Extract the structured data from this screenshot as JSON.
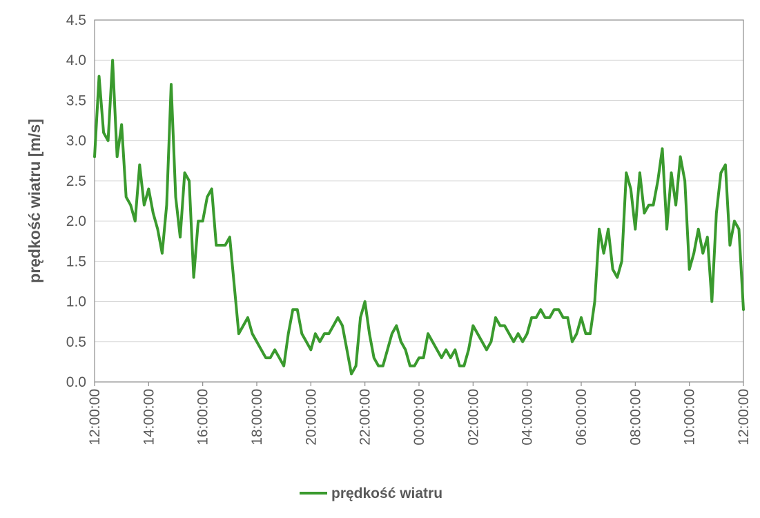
{
  "chart_data": {
    "type": "line",
    "ylabel": "prędkość wiatru [m/s]",
    "xlabel": "",
    "title": "",
    "ylim": [
      0,
      4.5
    ],
    "yticks": [
      "0.0",
      "0.5",
      "1.0",
      "1.5",
      "2.0",
      "2.5",
      "3.0",
      "3.5",
      "4.0",
      "4.5"
    ],
    "xlim_hours": [
      0,
      24
    ],
    "xticks": [
      "12:00:00",
      "14:00:00",
      "16:00:00",
      "18:00:00",
      "20:00:00",
      "22:00:00",
      "00:00:00",
      "02:00:00",
      "04:00:00",
      "06:00:00",
      "08:00:00",
      "10:00:00",
      "12:00:00"
    ],
    "grid": "horizontal",
    "legend": "bottom",
    "series": [
      {
        "name": "prędkość wiatru",
        "color": "#3a9a2e",
        "values": [
          2.8,
          3.8,
          3.1,
          3.0,
          4.0,
          2.8,
          3.2,
          2.3,
          2.2,
          2.0,
          2.7,
          2.2,
          2.4,
          2.1,
          1.9,
          1.6,
          2.2,
          3.7,
          2.3,
          1.8,
          2.6,
          2.5,
          1.3,
          2.0,
          2.0,
          2.3,
          2.4,
          1.7,
          1.7,
          1.7,
          1.8,
          1.2,
          0.6,
          0.7,
          0.8,
          0.6,
          0.5,
          0.4,
          0.3,
          0.3,
          0.4,
          0.3,
          0.2,
          0.6,
          0.9,
          0.9,
          0.6,
          0.5,
          0.4,
          0.6,
          0.5,
          0.6,
          0.6,
          0.7,
          0.8,
          0.7,
          0.4,
          0.1,
          0.2,
          0.8,
          1.0,
          0.6,
          0.3,
          0.2,
          0.2,
          0.4,
          0.6,
          0.7,
          0.5,
          0.4,
          0.2,
          0.2,
          0.3,
          0.3,
          0.6,
          0.5,
          0.4,
          0.3,
          0.4,
          0.3,
          0.4,
          0.2,
          0.2,
          0.4,
          0.7,
          0.6,
          0.5,
          0.4,
          0.5,
          0.8,
          0.7,
          0.7,
          0.6,
          0.5,
          0.6,
          0.5,
          0.6,
          0.8,
          0.8,
          0.9,
          0.8,
          0.8,
          0.9,
          0.9,
          0.8,
          0.8,
          0.5,
          0.6,
          0.8,
          0.6,
          0.6,
          1.0,
          1.9,
          1.6,
          1.9,
          1.4,
          1.3,
          1.5,
          2.6,
          2.4,
          1.9,
          2.6,
          2.1,
          2.2,
          2.2,
          2.5,
          2.9,
          1.9,
          2.6,
          2.2,
          2.8,
          2.5,
          1.4,
          1.6,
          1.9,
          1.6,
          1.8,
          1.0,
          2.1,
          2.6,
          2.7,
          1.7,
          2.0,
          1.9,
          0.9
        ]
      }
    ]
  }
}
